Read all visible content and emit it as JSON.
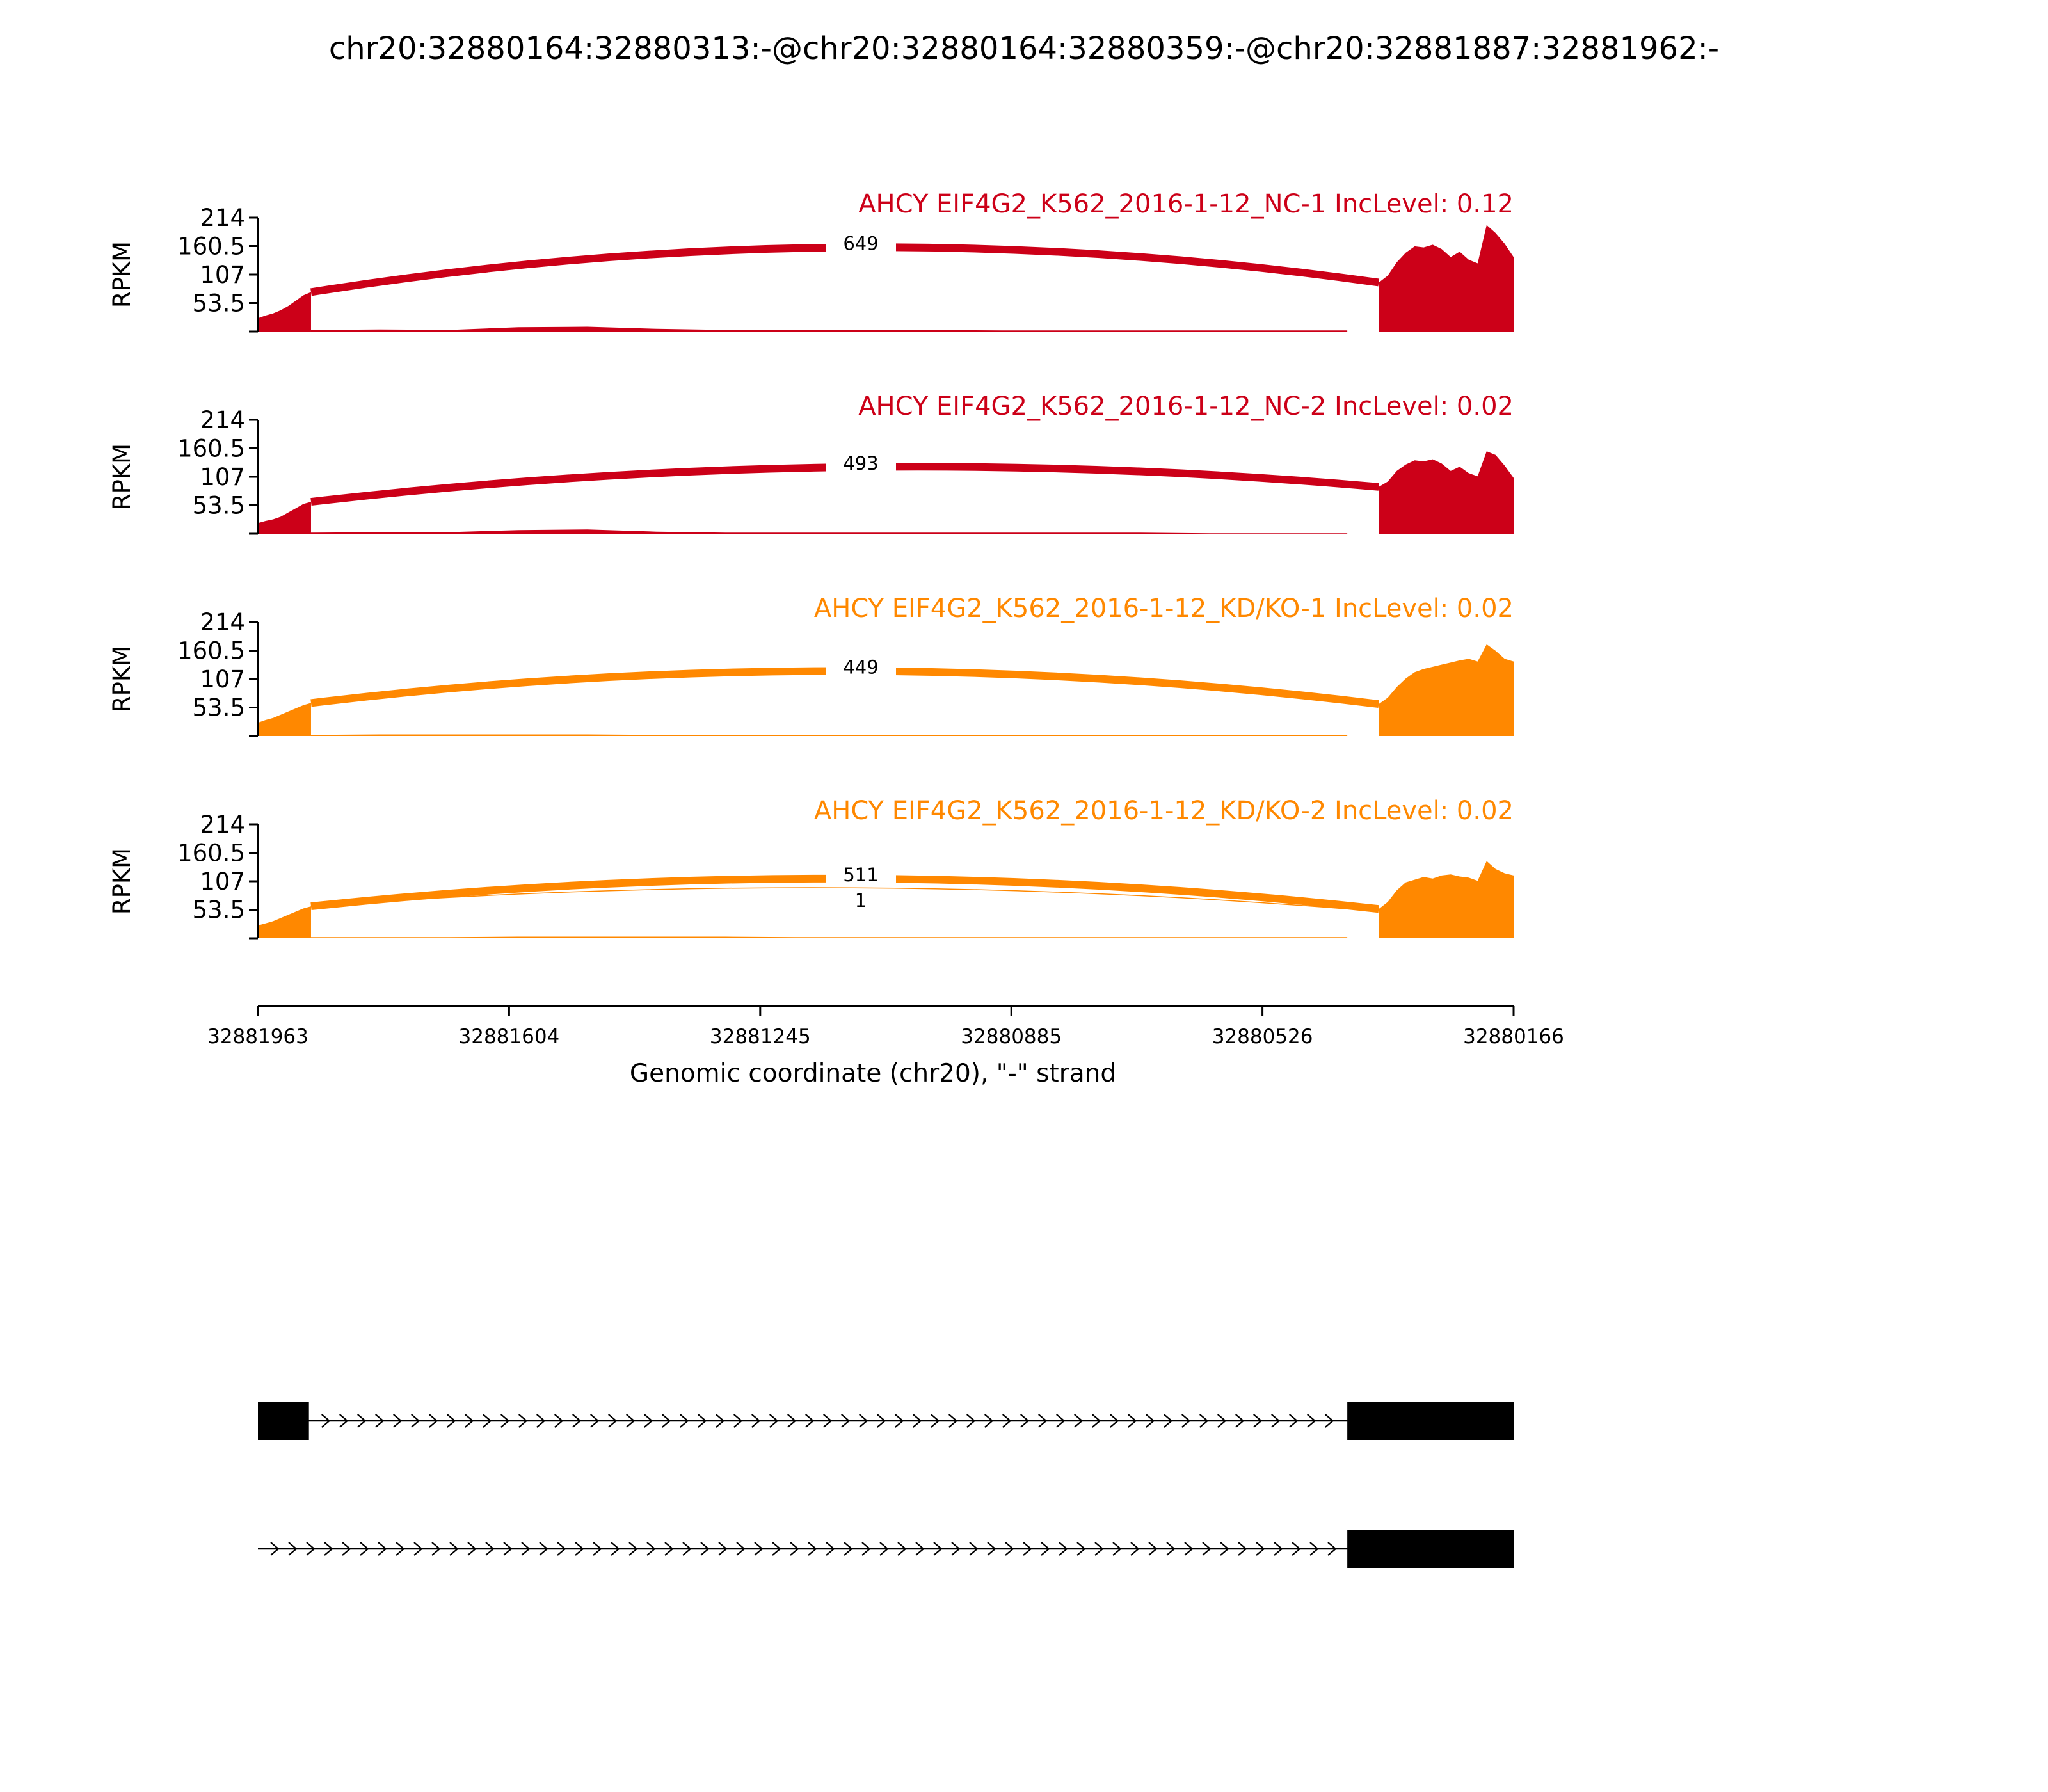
{
  "chart_data": {
    "type": "sashimi",
    "title": "chr20:32880164:32880313:-@chr20:32880164:32880359:-@chr20:32881887:32881962:-",
    "xlabel": "Genomic coordinate (chr20), \"-\" strand",
    "xlim": [
      32881963,
      32880166
    ],
    "xticks": [
      "32881963",
      "32881604",
      "32881245",
      "32880885",
      "32880526",
      "32880166"
    ],
    "ylabel": "RPKM",
    "ylim": [
      0,
      214
    ],
    "yticks": [
      "214",
      "160.5",
      "107",
      "53.5"
    ],
    "colors": {
      "nc": "#cc0018",
      "kd": "#ff8800",
      "structure": "#000000"
    },
    "panels": [
      {
        "name": "AHCY EIF4G2_K562_2016-1-12_NC-1 IncLevel: 0.12",
        "color": "#cc0018",
        "coverage": {
          "exon1": {
            "start": 32881963,
            "end": 32881887,
            "values": [
              25,
              30,
              34,
              40,
              48,
              58,
              68,
              74
            ]
          },
          "intron": {
            "start": 32881887,
            "end": 32880404,
            "values": [
              3,
              4,
              3,
              8,
              9,
              5,
              3,
              3,
              3,
              3,
              2,
              2,
              2,
              2,
              2,
              2
            ]
          },
          "exon2": {
            "start": 32880359,
            "end": 32880166,
            "values": [
              92,
              105,
              130,
              148,
              160,
              158,
              163,
              155,
              140,
              150,
              135,
              128,
              200,
              185,
              165,
              140
            ]
          }
        },
        "junctions": [
          {
            "from": 32881887,
            "to": 32880359,
            "count": "649",
            "peak": 158
          }
        ]
      },
      {
        "name": "AHCY EIF4G2_K562_2016-1-12_NC-2 IncLevel: 0.02",
        "color": "#cc0018",
        "coverage": {
          "exon1": {
            "start": 32881963,
            "end": 32881887,
            "values": [
              20,
              24,
              27,
              32,
              40,
              48,
              56,
              60
            ]
          },
          "intron": {
            "start": 32881887,
            "end": 32880404,
            "values": [
              2,
              3,
              3,
              7,
              8,
              4,
              2,
              2,
              2,
              2,
              2,
              2,
              2,
              1,
              1,
              1
            ]
          },
          "exon2": {
            "start": 32880359,
            "end": 32880166,
            "values": [
              88,
              98,
              118,
              130,
              138,
              136,
              140,
              132,
              118,
              126,
              114,
              108,
              155,
              148,
              128,
              105
            ]
          }
        },
        "junctions": [
          {
            "from": 32881887,
            "to": 32880359,
            "count": "493",
            "peak": 125
          }
        ]
      },
      {
        "name": "AHCY EIF4G2_K562_2016-1-12_KD/KO-1 IncLevel: 0.02",
        "color": "#ff8800",
        "coverage": {
          "exon1": {
            "start": 32881963,
            "end": 32881887,
            "values": [
              25,
              30,
              34,
              40,
              46,
              52,
              58,
              62
            ]
          },
          "intron": {
            "start": 32881887,
            "end": 32880404,
            "values": [
              2,
              3,
              3,
              3,
              3,
              2,
              2,
              2,
              2,
              2,
              2,
              2,
              2,
              2,
              2,
              2
            ]
          },
          "exon2": {
            "start": 32880359,
            "end": 32880166,
            "values": [
              60,
              72,
              92,
              108,
              120,
              126,
              130,
              134,
              138,
              142,
              145,
              140,
              172,
              160,
              145,
              140
            ]
          }
        },
        "junctions": [
          {
            "from": 32881887,
            "to": 32880359,
            "count": "449",
            "peak": 122
          }
        ]
      },
      {
        "name": "AHCY EIF4G2_K562_2016-1-12_KD/KO-2 IncLevel: 0.02",
        "color": "#ff8800",
        "coverage": {
          "exon1": {
            "start": 32881963,
            "end": 32881887,
            "values": [
              24,
              28,
              32,
              38,
              44,
              50,
              56,
              60
            ]
          },
          "intron": {
            "start": 32881887,
            "end": 32880404,
            "values": [
              2,
              2,
              2,
              3,
              3,
              3,
              3,
              2,
              2,
              2,
              2,
              2,
              2,
              2,
              2,
              2
            ]
          },
          "exon2": {
            "start": 32880359,
            "end": 32880166,
            "values": [
              55,
              68,
              90,
              105,
              110,
              115,
              112,
              118,
              120,
              116,
              114,
              108,
              145,
              130,
              122,
              118
            ]
          }
        },
        "junctions": [
          {
            "from": 32881887,
            "to": 32880359,
            "count": "511",
            "peak": 112
          },
          {
            "from": 32881887,
            "to": 32880404,
            "count": "1",
            "peak": 95
          }
        ]
      }
    ],
    "transcripts": [
      {
        "exons": [
          [
            32881963,
            32881890
          ],
          [
            32880404,
            32880166
          ]
        ]
      },
      {
        "exons": [
          [
            32880404,
            32880166
          ]
        ]
      }
    ]
  }
}
